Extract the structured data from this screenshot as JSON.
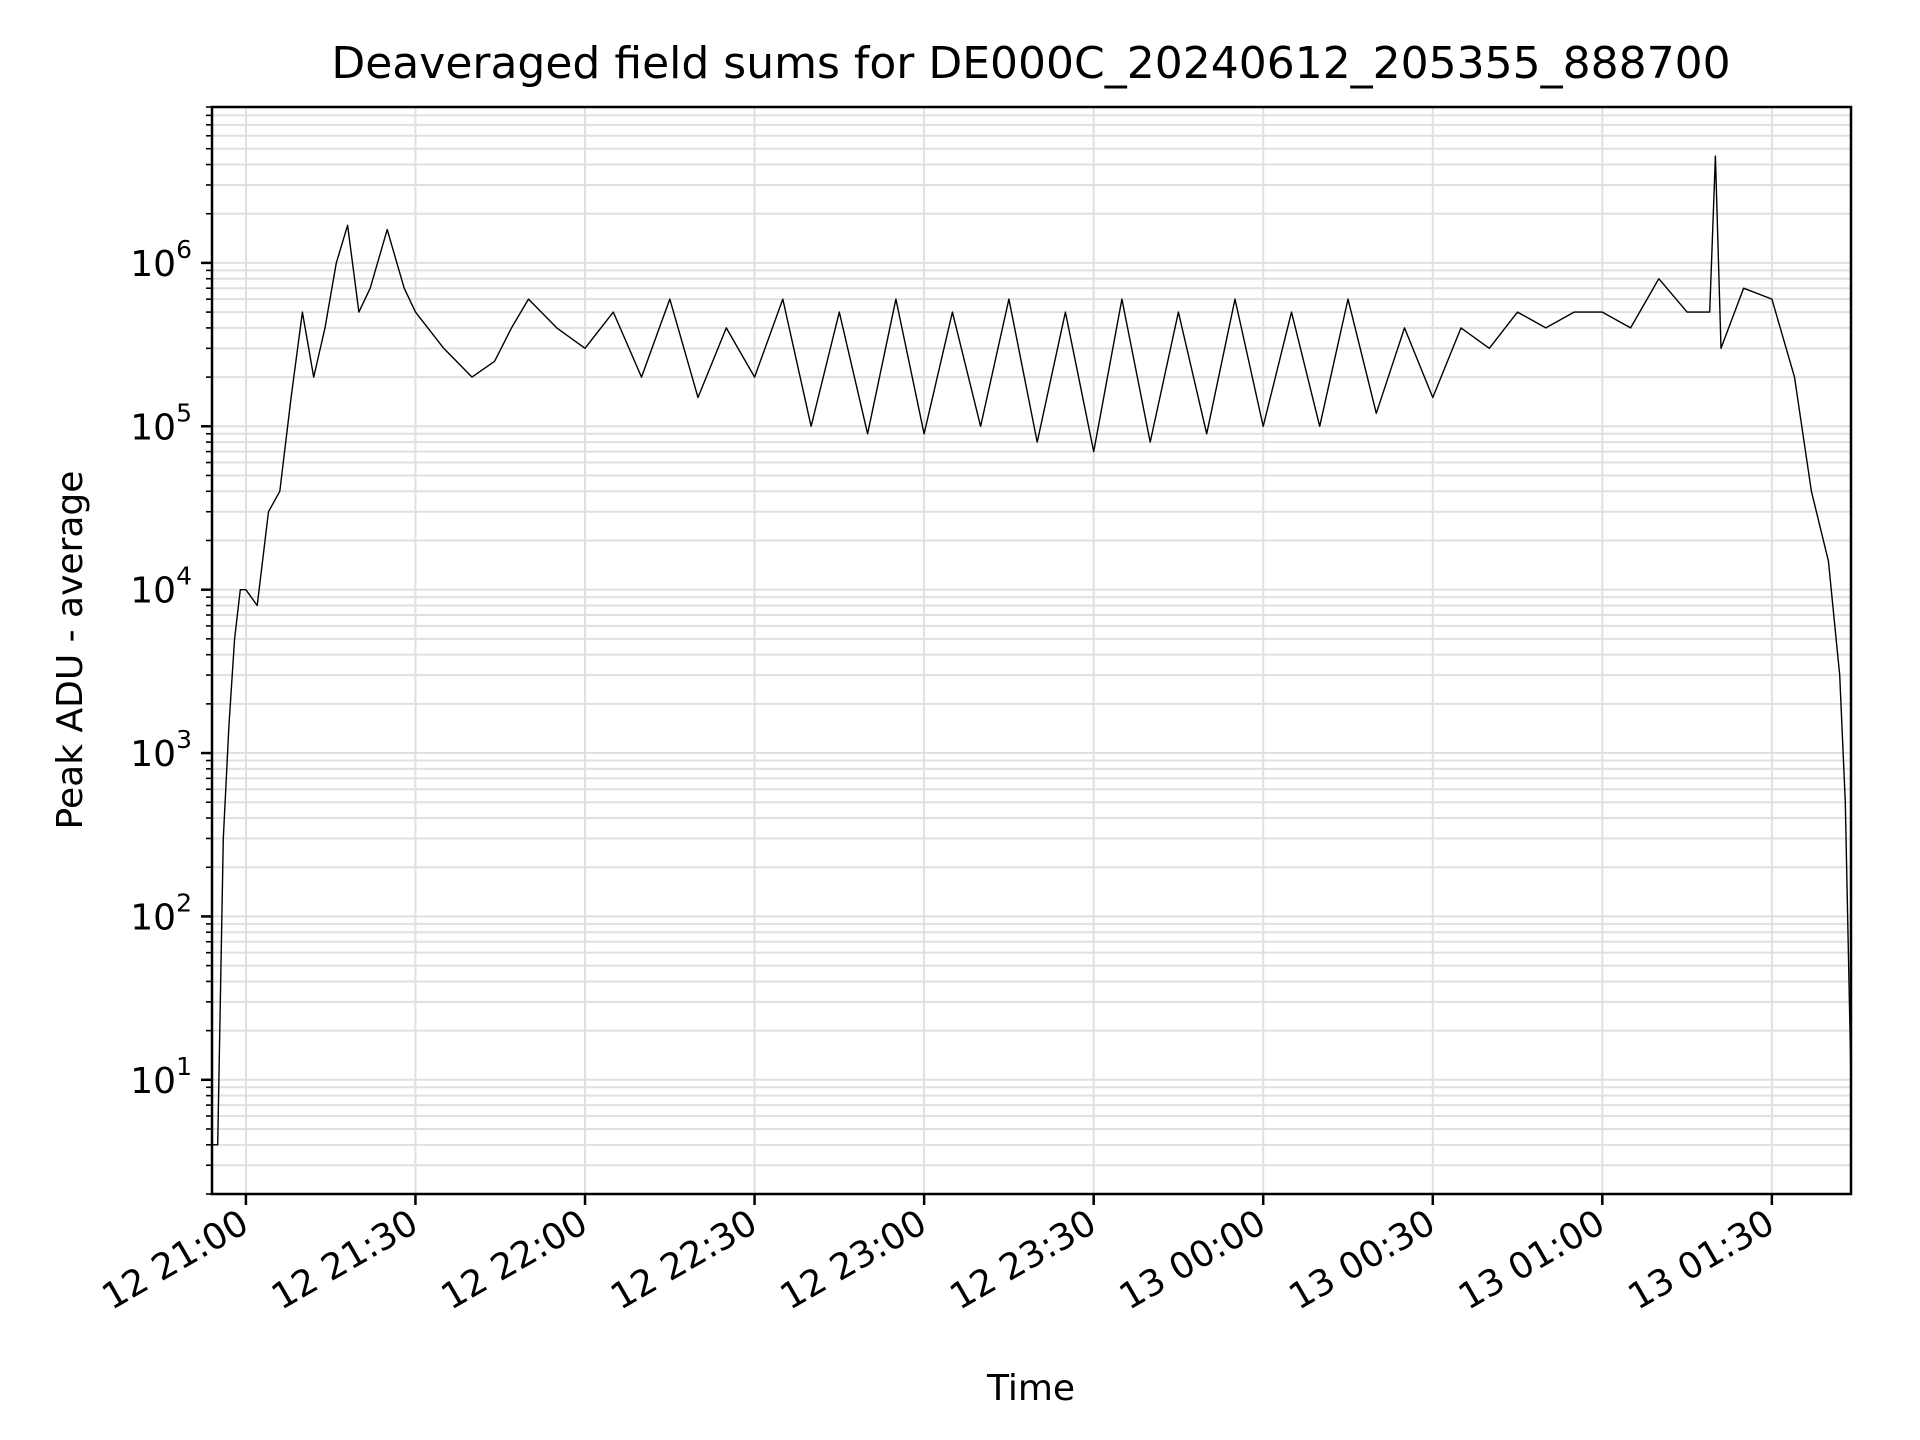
{
  "chart_data": {
    "type": "line",
    "title": "Deaveraged field sums for DE000C_20240612_205355_888700",
    "xlabel": "Time",
    "ylabel": "Peak ADU - average",
    "y_scale": "log",
    "ylim": [
      2,
      9000000
    ],
    "xlim": [
      "2024-06-12 20:54",
      "2024-06-13 01:44"
    ],
    "grid": true,
    "grid_minor": true,
    "line_color": "#000000",
    "grid_color": "#e0e0e0",
    "x_ticks": [
      "2024-06-12 21:00",
      "2024-06-12 21:30",
      "2024-06-12 22:00",
      "2024-06-12 22:30",
      "2024-06-12 23:00",
      "2024-06-12 23:30",
      "2024-06-13 00:00",
      "2024-06-13 00:30",
      "2024-06-13 01:00",
      "2024-06-13 01:30"
    ],
    "x_tick_labels": [
      "12 21:00",
      "12 21:30",
      "12 22:00",
      "12 22:30",
      "12 23:00",
      "12 23:30",
      "13 00:00",
      "13 00:30",
      "13 01:00",
      "13 01:30"
    ],
    "y_tick_labels": [
      {
        "base": "10",
        "exp": "1"
      },
      {
        "base": "10",
        "exp": "2"
      },
      {
        "base": "10",
        "exp": "3"
      },
      {
        "base": "10",
        "exp": "4"
      },
      {
        "base": "10",
        "exp": "5"
      },
      {
        "base": "10",
        "exp": "6"
      }
    ],
    "series": [
      {
        "x": [
          "2024-06-12 20:54",
          "2024-06-12 20:55",
          "2024-06-12 20:56",
          "2024-06-12 20:57",
          "2024-06-12 20:58",
          "2024-06-12 20:59",
          "2024-06-12 21:00",
          "2024-06-12 21:02",
          "2024-06-12 21:04",
          "2024-06-12 21:06",
          "2024-06-12 21:08",
          "2024-06-12 21:10",
          "2024-06-12 21:12",
          "2024-06-12 21:14",
          "2024-06-12 21:16",
          "2024-06-12 21:18",
          "2024-06-12 21:20",
          "2024-06-12 21:22",
          "2024-06-12 21:25",
          "2024-06-12 21:28",
          "2024-06-12 21:30",
          "2024-06-12 21:35",
          "2024-06-12 21:40",
          "2024-06-12 21:44",
          "2024-06-12 21:47",
          "2024-06-12 21:50",
          "2024-06-12 21:55",
          "2024-06-12 22:00",
          "2024-06-12 22:05",
          "2024-06-12 22:10",
          "2024-06-12 22:15",
          "2024-06-12 22:20",
          "2024-06-12 22:25",
          "2024-06-12 22:30",
          "2024-06-12 22:35",
          "2024-06-12 22:40",
          "2024-06-12 22:45",
          "2024-06-12 22:50",
          "2024-06-12 22:55",
          "2024-06-12 23:00",
          "2024-06-12 23:05",
          "2024-06-12 23:10",
          "2024-06-12 23:15",
          "2024-06-12 23:20",
          "2024-06-12 23:25",
          "2024-06-12 23:30",
          "2024-06-12 23:35",
          "2024-06-12 23:40",
          "2024-06-12 23:45",
          "2024-06-12 23:50",
          "2024-06-12 23:55",
          "2024-06-13 00:00",
          "2024-06-13 00:05",
          "2024-06-13 00:10",
          "2024-06-13 00:15",
          "2024-06-13 00:20",
          "2024-06-13 00:25",
          "2024-06-13 00:30",
          "2024-06-13 00:35",
          "2024-06-13 00:40",
          "2024-06-13 00:45",
          "2024-06-13 00:50",
          "2024-06-13 00:55",
          "2024-06-13 01:00",
          "2024-06-13 01:05",
          "2024-06-13 01:10",
          "2024-06-13 01:15",
          "2024-06-13 01:19",
          "2024-06-13 01:20",
          "2024-06-13 01:21",
          "2024-06-13 01:25",
          "2024-06-13 01:30",
          "2024-06-13 01:34",
          "2024-06-13 01:37",
          "2024-06-13 01:40",
          "2024-06-13 01:42",
          "2024-06-13 01:43",
          "2024-06-13 01:44"
        ],
        "y": [
          4,
          4,
          300,
          1500,
          5000,
          10000,
          10000,
          8000,
          30000,
          40000,
          150000,
          500000,
          200000,
          400000,
          1000000,
          1700000,
          500000,
          700000,
          1600000,
          700000,
          500000,
          300000,
          200000,
          250000,
          400000,
          600000,
          400000,
          300000,
          500000,
          200000,
          600000,
          150000,
          400000,
          200000,
          600000,
          100000,
          500000,
          90000,
          600000,
          90000,
          500000,
          100000,
          600000,
          80000,
          500000,
          70000,
          600000,
          80000,
          500000,
          90000,
          600000,
          100000,
          500000,
          100000,
          600000,
          120000,
          400000,
          150000,
          400000,
          300000,
          500000,
          400000,
          500000,
          500000,
          400000,
          800000,
          500000,
          500000,
          4500000,
          300000,
          700000,
          600000,
          200000,
          40000,
          15000,
          3000,
          500,
          10
        ]
      }
    ]
  }
}
